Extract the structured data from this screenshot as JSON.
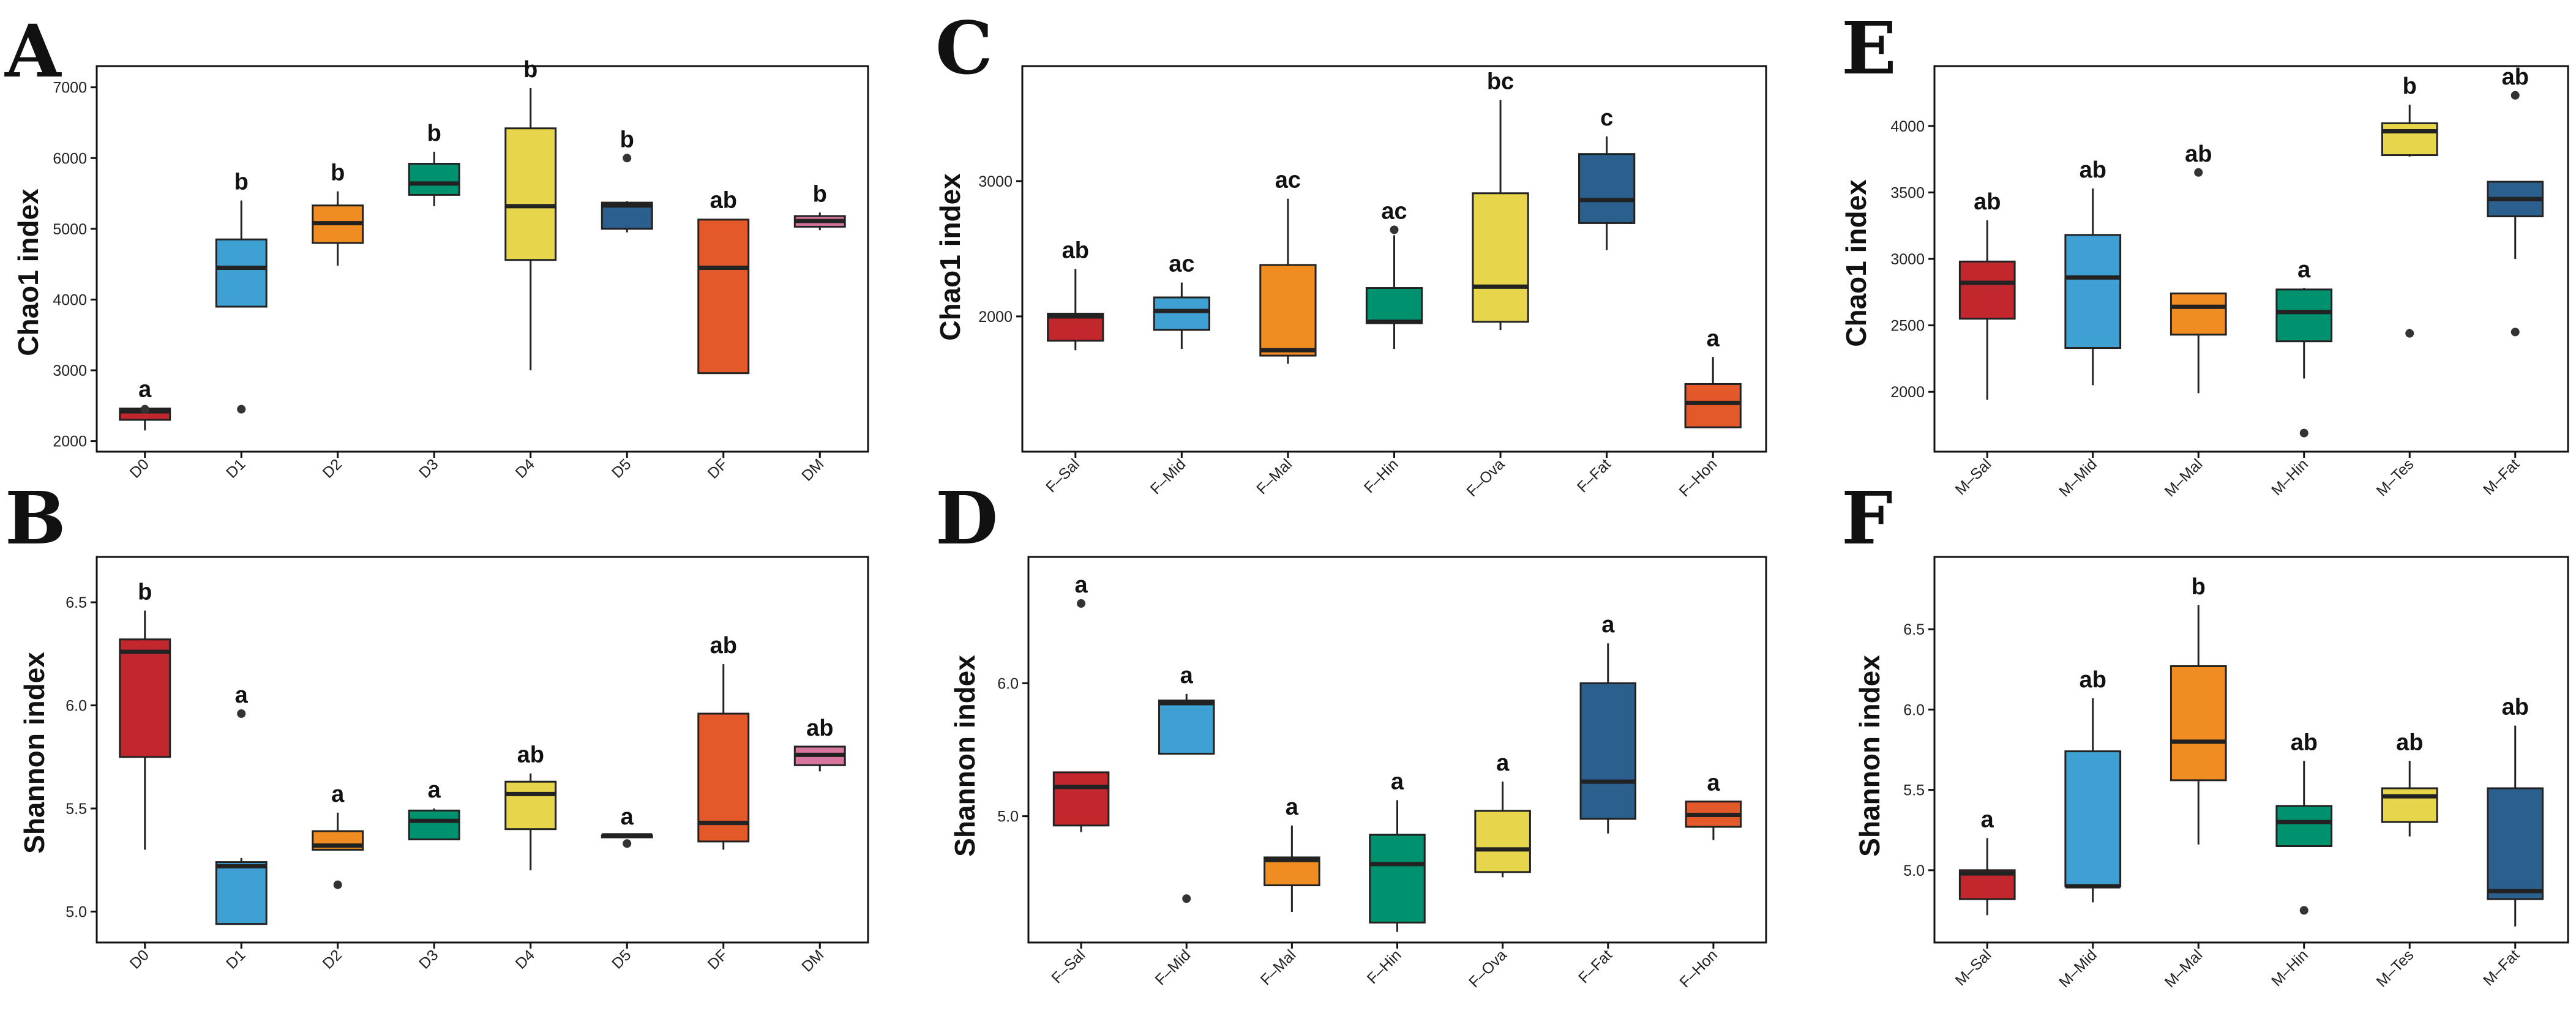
{
  "chart_data": [
    {
      "panel": "A",
      "type": "box",
      "ylabel": "Chao1 index",
      "ylim": [
        1850,
        7300
      ],
      "yticks": [
        2000,
        3000,
        4000,
        5000,
        6000,
        7000
      ],
      "categories": [
        "D0",
        "D1",
        "D2",
        "D3",
        "D4",
        "D5",
        "DF",
        "DM"
      ],
      "colors": [
        "#C1272D",
        "#3FA0D4",
        "#EF8C22",
        "#00916E",
        "#E7D64B",
        "#2A5F8E",
        "#E3592A",
        "#D6759E"
      ],
      "boxes": [
        {
          "wlo": 2150,
          "q1": 2300,
          "med": 2420,
          "q3": 2460,
          "whi": 2470,
          "outliers": [
            2450
          ],
          "sig": "a"
        },
        {
          "wlo": 3900,
          "q1": 3900,
          "med": 4450,
          "q3": 4850,
          "whi": 5400,
          "outliers": [
            2450
          ],
          "sig": "b"
        },
        {
          "wlo": 4480,
          "q1": 4800,
          "med": 5080,
          "q3": 5330,
          "whi": 5530,
          "outliers": [],
          "sig": "b"
        },
        {
          "wlo": 5320,
          "q1": 5480,
          "med": 5640,
          "q3": 5920,
          "whi": 6090,
          "outliers": [],
          "sig": "b"
        },
        {
          "wlo": 3000,
          "q1": 4560,
          "med": 5320,
          "q3": 6420,
          "whi": 6990,
          "outliers": [],
          "sig": "b"
        },
        {
          "wlo": 4950,
          "q1": 5000,
          "med": 5330,
          "q3": 5370,
          "whi": 5390,
          "outliers": [
            6000
          ],
          "sig": "b"
        },
        {
          "wlo": 2950,
          "q1": 2960,
          "med": 4450,
          "q3": 5130,
          "whi": 5140,
          "outliers": [],
          "sig": "ab"
        },
        {
          "wlo": 4980,
          "q1": 5030,
          "med": 5110,
          "q3": 5180,
          "whi": 5230,
          "outliers": [],
          "sig": "b"
        }
      ]
    },
    {
      "panel": "C",
      "type": "box",
      "ylabel": "Chao1 index",
      "ylim": [
        1000,
        3850
      ],
      "yticks": [
        2000,
        3000
      ],
      "categories": [
        "F–Sal",
        "F–Mid",
        "F–Mal",
        "F–Hin",
        "F–Ova",
        "F–Fat",
        "F–Hon"
      ],
      "colors": [
        "#C1272D",
        "#3FA0D4",
        "#EF8C22",
        "#00916E",
        "#E7D64B",
        "#2A5F8E",
        "#E3592A"
      ],
      "boxes": [
        {
          "wlo": 1750,
          "q1": 1820,
          "med": 2000,
          "q3": 2020,
          "whi": 2350,
          "outliers": [],
          "sig": "ab"
        },
        {
          "wlo": 1760,
          "q1": 1900,
          "med": 2040,
          "q3": 2140,
          "whi": 2250,
          "outliers": [],
          "sig": "ac"
        },
        {
          "wlo": 1650,
          "q1": 1710,
          "med": 1750,
          "q3": 2380,
          "whi": 2870,
          "outliers": [],
          "sig": "ac"
        },
        {
          "wlo": 1760,
          "q1": 1950,
          "med": 1960,
          "q3": 2210,
          "whi": 2600,
          "outliers": [
            2640
          ],
          "sig": "ac"
        },
        {
          "wlo": 1900,
          "q1": 1960,
          "med": 2220,
          "q3": 2910,
          "whi": 3600,
          "outliers": [],
          "sig": "bc"
        },
        {
          "wlo": 2490,
          "q1": 2690,
          "med": 2860,
          "q3": 3200,
          "whi": 3330,
          "outliers": [],
          "sig": "c"
        },
        {
          "wlo": 1180,
          "q1": 1180,
          "med": 1360,
          "q3": 1500,
          "whi": 1700,
          "outliers": [],
          "sig": "a"
        }
      ]
    },
    {
      "panel": "E",
      "type": "box",
      "ylabel": "Chao1 index",
      "ylim": [
        1550,
        4450
      ],
      "yticks": [
        2000,
        2500,
        3000,
        3500,
        4000
      ],
      "categories": [
        "M–Sal",
        "M–Mid",
        "M–Mal",
        "M–Hin",
        "M–Tes",
        "M–Fat"
      ],
      "colors": [
        "#C1272D",
        "#3FA0D4",
        "#EF8C22",
        "#00916E",
        "#E7D64B",
        "#2A5F8E"
      ],
      "boxes": [
        {
          "wlo": 1940,
          "q1": 2550,
          "med": 2820,
          "q3": 2980,
          "whi": 3290,
          "outliers": [],
          "sig": "ab"
        },
        {
          "wlo": 2050,
          "q1": 2330,
          "med": 2860,
          "q3": 3180,
          "whi": 3530,
          "outliers": [],
          "sig": "ab"
        },
        {
          "wlo": 1990,
          "q1": 2430,
          "med": 2640,
          "q3": 2740,
          "whi": 2740,
          "outliers": [
            3650
          ],
          "sig": "ab"
        },
        {
          "wlo": 2100,
          "q1": 2380,
          "med": 2600,
          "q3": 2770,
          "whi": 2780,
          "outliers": [
            1690
          ],
          "sig": "a"
        },
        {
          "wlo": 3770,
          "q1": 3780,
          "med": 3960,
          "q3": 4020,
          "whi": 4160,
          "outliers": [
            2440
          ],
          "sig": "b"
        },
        {
          "wlo": 3000,
          "q1": 3320,
          "med": 3450,
          "q3": 3580,
          "whi": 3580,
          "outliers": [
            2450,
            4230
          ],
          "sig": "ab"
        }
      ]
    },
    {
      "panel": "B",
      "type": "box",
      "ylabel": "Shannon index",
      "ylim": [
        4.85,
        6.72
      ],
      "yticks": [
        "5.0",
        "5.5",
        "6.0",
        "6.5"
      ],
      "categories": [
        "D0",
        "D1",
        "D2",
        "D3",
        "D4",
        "D5",
        "DF",
        "DM"
      ],
      "colors": [
        "#C1272D",
        "#3FA0D4",
        "#EF8C22",
        "#00916E",
        "#E7D64B",
        "#2A5F8E",
        "#E3592A",
        "#D6759E"
      ],
      "boxes": [
        {
          "wlo": 5.3,
          "q1": 5.75,
          "med": 6.26,
          "q3": 6.32,
          "whi": 6.46,
          "outliers": [],
          "sig": "b"
        },
        {
          "wlo": 4.94,
          "q1": 4.94,
          "med": 5.22,
          "q3": 5.24,
          "whi": 5.26,
          "outliers": [
            5.96
          ],
          "sig": "a"
        },
        {
          "wlo": 5.3,
          "q1": 5.3,
          "med": 5.32,
          "q3": 5.39,
          "whi": 5.48,
          "outliers": [
            5.13
          ],
          "sig": "a"
        },
        {
          "wlo": 5.35,
          "q1": 5.35,
          "med": 5.44,
          "q3": 5.49,
          "whi": 5.5,
          "outliers": [],
          "sig": "a"
        },
        {
          "wlo": 5.2,
          "q1": 5.4,
          "med": 5.57,
          "q3": 5.63,
          "whi": 5.67,
          "outliers": [],
          "sig": "ab"
        },
        {
          "wlo": 5.36,
          "q1": 5.36,
          "med": 5.37,
          "q3": 5.37,
          "whi": 5.37,
          "outliers": [
            5.33
          ],
          "sig": "a"
        },
        {
          "wlo": 5.3,
          "q1": 5.34,
          "med": 5.43,
          "q3": 5.96,
          "whi": 6.2,
          "outliers": [],
          "sig": "ab"
        },
        {
          "wlo": 5.68,
          "q1": 5.71,
          "med": 5.76,
          "q3": 5.8,
          "whi": 5.8,
          "outliers": [],
          "sig": "ab"
        }
      ]
    },
    {
      "panel": "D",
      "type": "box",
      "ylabel": "Shannon index",
      "ylim": [
        4.05,
        6.95
      ],
      "yticks": [
        "5.0",
        "6.0"
      ],
      "categories": [
        "F–Sal",
        "F–Mid",
        "F–Mal",
        "F–Hin",
        "F–Ova",
        "F–Fat",
        "F–Hon"
      ],
      "colors": [
        "#C1272D",
        "#3FA0D4",
        "#EF8C22",
        "#00916E",
        "#E7D64B",
        "#2A5F8E",
        "#E3592A"
      ],
      "boxes": [
        {
          "wlo": 4.88,
          "q1": 4.93,
          "med": 5.22,
          "q3": 5.33,
          "whi": 5.33,
          "outliers": [
            6.6
          ],
          "sig": "a"
        },
        {
          "wlo": 5.47,
          "q1": 5.47,
          "med": 5.85,
          "q3": 5.87,
          "whi": 5.92,
          "outliers": [
            4.38
          ],
          "sig": "a"
        },
        {
          "wlo": 4.28,
          "q1": 4.48,
          "med": 4.67,
          "q3": 4.69,
          "whi": 4.93,
          "outliers": [],
          "sig": "a"
        },
        {
          "wlo": 4.13,
          "q1": 4.2,
          "med": 4.64,
          "q3": 4.86,
          "whi": 5.12,
          "outliers": [],
          "sig": "a"
        },
        {
          "wlo": 4.54,
          "q1": 4.58,
          "med": 4.75,
          "q3": 5.04,
          "whi": 5.26,
          "outliers": [],
          "sig": "a"
        },
        {
          "wlo": 4.87,
          "q1": 4.98,
          "med": 5.26,
          "q3": 6.0,
          "whi": 6.3,
          "outliers": [],
          "sig": "a"
        },
        {
          "wlo": 4.82,
          "q1": 4.92,
          "med": 5.01,
          "q3": 5.11,
          "whi": 5.11,
          "outliers": [],
          "sig": "a"
        }
      ]
    },
    {
      "panel": "F",
      "type": "box",
      "ylabel": "Shannon index",
      "ylim": [
        4.55,
        6.95
      ],
      "yticks": [
        "5.0",
        "5.5",
        "6.0",
        "6.5"
      ],
      "categories": [
        "M–Sal",
        "M–Mid",
        "M–Mal",
        "M–Hin",
        "M–Tes",
        "M–Fat"
      ],
      "colors": [
        "#C1272D",
        "#3FA0D4",
        "#EF8C22",
        "#00916E",
        "#E7D64B",
        "#2A5F8E"
      ],
      "boxes": [
        {
          "wlo": 4.72,
          "q1": 4.82,
          "med": 4.98,
          "q3": 5.0,
          "whi": 5.2,
          "outliers": [],
          "sig": "a"
        },
        {
          "wlo": 4.8,
          "q1": 4.9,
          "med": 4.9,
          "q3": 5.74,
          "whi": 6.07,
          "outliers": [],
          "sig": "ab"
        },
        {
          "wlo": 5.16,
          "q1": 5.56,
          "med": 5.8,
          "q3": 6.27,
          "whi": 6.65,
          "outliers": [],
          "sig": "b"
        },
        {
          "wlo": 5.15,
          "q1": 5.15,
          "med": 5.3,
          "q3": 5.4,
          "whi": 5.68,
          "outliers": [
            4.75
          ],
          "sig": "ab"
        },
        {
          "wlo": 5.21,
          "q1": 5.3,
          "med": 5.46,
          "q3": 5.51,
          "whi": 5.68,
          "outliers": [],
          "sig": "ab"
        },
        {
          "wlo": 4.65,
          "q1": 4.82,
          "med": 4.87,
          "q3": 5.51,
          "whi": 5.9,
          "outliers": [],
          "sig": "ab"
        }
      ]
    }
  ]
}
